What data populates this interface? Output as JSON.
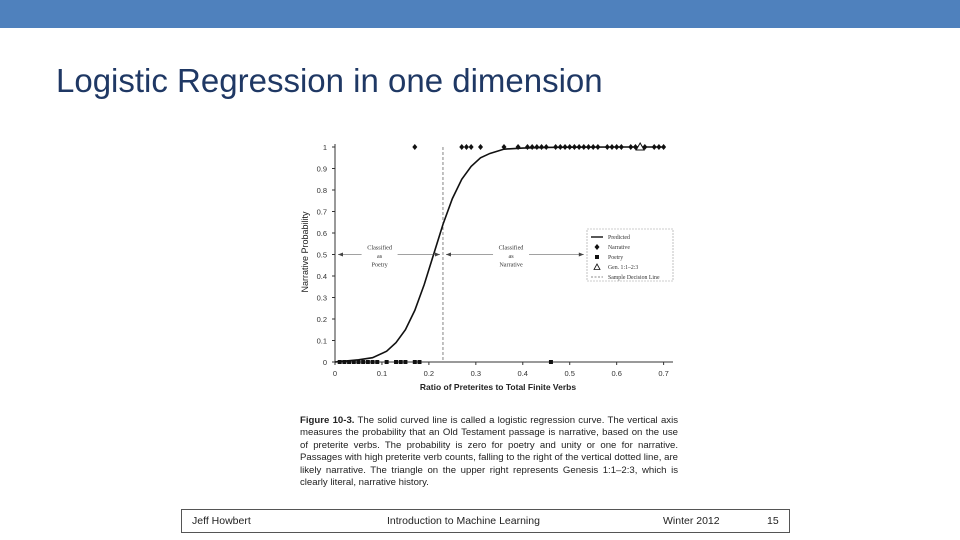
{
  "slide": {
    "title": "Logistic Regression in one dimension",
    "accent_color": "#4f81bd",
    "title_color": "#1f3864"
  },
  "chart_data": {
    "type": "scatter",
    "xlabel": "Ratio of Preterites to Total Finite Verbs",
    "ylabel": "Narrative Probability",
    "xlim": [
      0,
      0.72
    ],
    "ylim": [
      0,
      1
    ],
    "x_ticks": [
      "0",
      "0.1",
      "0.2",
      "0.3",
      "0.4",
      "0.5",
      "0.6",
      "0.7"
    ],
    "y_ticks": [
      "0",
      "0.1",
      "0.2",
      "0.3",
      "0.4",
      "0.5",
      "0.6",
      "0.7",
      "0.8",
      "0.9",
      "1"
    ],
    "decision_line_x": 0.23,
    "series": [
      {
        "name": "Predicted",
        "kind": "line",
        "x": [
          0,
          0.05,
          0.08,
          0.11,
          0.13,
          0.15,
          0.17,
          0.19,
          0.21,
          0.23,
          0.25,
          0.27,
          0.29,
          0.31,
          0.33,
          0.36,
          0.4,
          0.45,
          0.5,
          0.6,
          0.7
        ],
        "y": [
          0.0,
          0.01,
          0.02,
          0.05,
          0.09,
          0.15,
          0.24,
          0.36,
          0.5,
          0.64,
          0.76,
          0.85,
          0.91,
          0.95,
          0.97,
          0.99,
          0.995,
          0.998,
          0.999,
          1.0,
          1.0
        ]
      },
      {
        "name": "Narrative",
        "kind": "diamond",
        "x": [
          0.17,
          0.27,
          0.28,
          0.29,
          0.31,
          0.36,
          0.39,
          0.41,
          0.42,
          0.43,
          0.44,
          0.45,
          0.47,
          0.48,
          0.49,
          0.5,
          0.51,
          0.52,
          0.53,
          0.54,
          0.55,
          0.56,
          0.58,
          0.59,
          0.6,
          0.61,
          0.63,
          0.64,
          0.65,
          0.66,
          0.68,
          0.69,
          0.7
        ],
        "y": [
          1,
          1,
          1,
          1,
          1,
          1,
          1,
          1,
          1,
          1,
          1,
          1,
          1,
          1,
          1,
          1,
          1,
          1,
          1,
          1,
          1,
          1,
          1,
          1,
          1,
          1,
          1,
          1,
          1,
          1,
          1,
          1,
          1
        ]
      },
      {
        "name": "Poetry",
        "kind": "square",
        "x": [
          0.01,
          0.02,
          0.03,
          0.04,
          0.05,
          0.06,
          0.07,
          0.08,
          0.09,
          0.11,
          0.13,
          0.14,
          0.15,
          0.17,
          0.18,
          0.46
        ],
        "y": [
          0,
          0,
          0,
          0,
          0,
          0,
          0,
          0,
          0,
          0,
          0,
          0,
          0,
          0,
          0,
          0
        ]
      },
      {
        "name": "Gen. 1:1–2:3",
        "kind": "triangle",
        "x": [
          0.65
        ],
        "y": [
          1
        ]
      }
    ],
    "legend": {
      "position": "right",
      "items": [
        "Predicted",
        "Narrative",
        "Poetry",
        "Gen. 1:1–2:3",
        "Sample Decision Line"
      ]
    },
    "annotations": [
      {
        "text": [
          "Classified",
          "as",
          "Poetry"
        ]
      },
      {
        "text": [
          "Classified",
          "as",
          "Narrative"
        ]
      }
    ]
  },
  "caption": {
    "label": "Figure 10-3.",
    "text": "The solid curved line is called a logistic regression curve. The vertical axis measures the probability that an Old Testament passage is narrative, based on the use of preterite verbs. The probability is zero for poetry and unity or one for narrative. Passages with high preterite verb counts, falling to the right of the vertical dotted line, are likely narrative. The triangle on the upper right represents Genesis 1:1–2:3, which is clearly literal, narrative history."
  },
  "footer": {
    "author": "Jeff Howbert",
    "course": "Introduction to Machine Learning",
    "term": "Winter 2012",
    "page": "15"
  }
}
